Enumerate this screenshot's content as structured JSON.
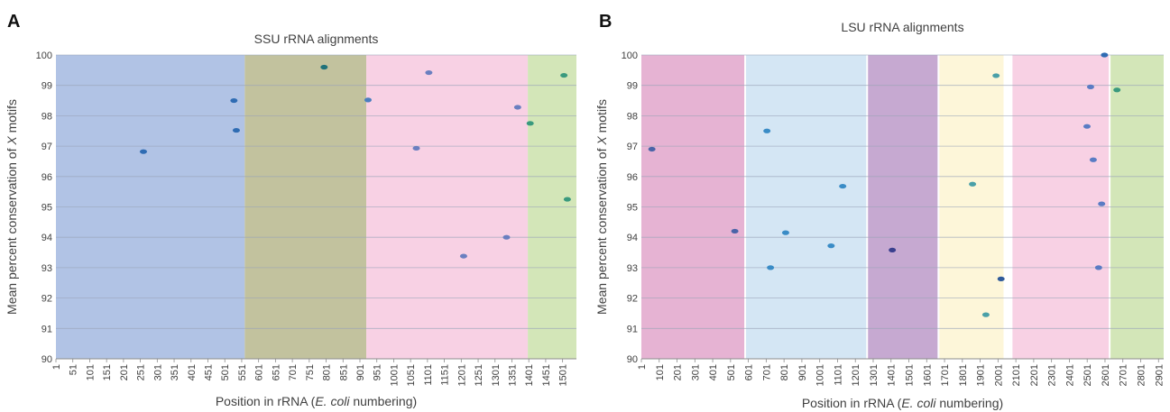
{
  "chart_data": [
    {
      "panel": "A",
      "type": "scatter",
      "title": "SSU rRNA alignments",
      "xlabel": "Position in rRNA (E. coli numbering)",
      "xlabel_parts": [
        "Position in rRNA (",
        "E. coli",
        " numbering)"
      ],
      "ylabel": "Mean percent conservation of X motifs",
      "ylabel_parts": [
        "Mean percent conservation of ",
        "X",
        " motifs"
      ],
      "xlim": [
        1,
        1542
      ],
      "ylim": [
        90,
        100
      ],
      "x_ticks": [
        "1",
        "51",
        "101",
        "151",
        "201",
        "251",
        "301",
        "351",
        "401",
        "451",
        "501",
        "551",
        "601",
        "651",
        "701",
        "751",
        "801",
        "851",
        "901",
        "951",
        "1001",
        "1051",
        "1101",
        "1151",
        "1201",
        "1251",
        "1301",
        "1351",
        "1401",
        "1451",
        "1501"
      ],
      "y_ticks": [
        "90",
        "91",
        "92",
        "93",
        "94",
        "95",
        "96",
        "97",
        "98",
        "99",
        "100"
      ],
      "grid": true,
      "regions": [
        {
          "start": 1,
          "end": 560,
          "color": "#b1c3e5"
        },
        {
          "start": 560,
          "end": 920,
          "color": "#c2c29e"
        },
        {
          "start": 920,
          "end": 1398,
          "color": "#f8d1e4"
        },
        {
          "start": 1398,
          "end": 1542,
          "color": "#d3e6b8"
        }
      ],
      "points": [
        {
          "x": 260,
          "y": 96.82,
          "color": "#2f6cb3"
        },
        {
          "x": 528,
          "y": 98.5,
          "color": "#2f6cb3"
        },
        {
          "x": 535,
          "y": 97.52,
          "color": "#2f6cb3"
        },
        {
          "x": 795,
          "y": 99.6,
          "color": "#20727a"
        },
        {
          "x": 925,
          "y": 98.52,
          "color": "#4a7fbf"
        },
        {
          "x": 1068,
          "y": 96.93,
          "color": "#6a7fc0"
        },
        {
          "x": 1105,
          "y": 99.42,
          "color": "#6a7fc0"
        },
        {
          "x": 1208,
          "y": 93.38,
          "color": "#6a7fc0"
        },
        {
          "x": 1335,
          "y": 94.0,
          "color": "#6a7fc0"
        },
        {
          "x": 1368,
          "y": 98.28,
          "color": "#6a7fc0"
        },
        {
          "x": 1405,
          "y": 97.75,
          "color": "#3a9a7e"
        },
        {
          "x": 1505,
          "y": 99.33,
          "color": "#3a9a7e"
        },
        {
          "x": 1515,
          "y": 95.25,
          "color": "#3a9a7e"
        }
      ]
    },
    {
      "panel": "B",
      "type": "scatter",
      "title": "LSU rRNA alignments",
      "xlabel": "Position in rRNA (E. coli numbering)",
      "xlabel_parts": [
        "Position in rRNA (",
        "E. coli",
        " numbering)"
      ],
      "ylabel": "Mean percent conservation of X motifs",
      "ylabel_parts": [
        "Mean percent conservation of ",
        "X",
        " motifs"
      ],
      "xlim": [
        1,
        2930
      ],
      "ylim": [
        90,
        100
      ],
      "x_ticks": [
        "1",
        "101",
        "201",
        "301",
        "401",
        "501",
        "601",
        "701",
        "801",
        "901",
        "1001",
        "1101",
        "1201",
        "1301",
        "1401",
        "1501",
        "1601",
        "1701",
        "1801",
        "1901",
        "2001",
        "2101",
        "2201",
        "2301",
        "2401",
        "2501",
        "2601",
        "2701",
        "2801",
        "2901"
      ],
      "y_ticks": [
        "90",
        "91",
        "92",
        "93",
        "94",
        "95",
        "96",
        "97",
        "98",
        "99",
        "100"
      ],
      "grid": true,
      "regions": [
        {
          "start": 1,
          "end": 578,
          "color": "#e6b3d3"
        },
        {
          "start": 588,
          "end": 1262,
          "color": "#d4e6f4"
        },
        {
          "start": 1272,
          "end": 1662,
          "color": "#c6a9d1"
        },
        {
          "start": 1672,
          "end": 2032,
          "color": "#fdf6d9"
        },
        {
          "start": 2082,
          "end": 2622,
          "color": "#f8d1e4"
        },
        {
          "start": 2632,
          "end": 2930,
          "color": "#d3e6b8"
        }
      ],
      "points": [
        {
          "x": 60,
          "y": 96.9,
          "color": "#4a64a8"
        },
        {
          "x": 525,
          "y": 94.2,
          "color": "#4a64a8"
        },
        {
          "x": 705,
          "y": 97.5,
          "color": "#3a8cc6"
        },
        {
          "x": 725,
          "y": 93.0,
          "color": "#3a8cc6"
        },
        {
          "x": 810,
          "y": 94.15,
          "color": "#3a8cc6"
        },
        {
          "x": 1065,
          "y": 93.72,
          "color": "#3a8cc6"
        },
        {
          "x": 1130,
          "y": 95.68,
          "color": "#3a8cc6"
        },
        {
          "x": 1408,
          "y": 93.58,
          "color": "#3a3f8e"
        },
        {
          "x": 1858,
          "y": 95.75,
          "color": "#4aa0a8"
        },
        {
          "x": 1933,
          "y": 91.45,
          "color": "#4aa0a8"
        },
        {
          "x": 1990,
          "y": 99.32,
          "color": "#4aa0a8"
        },
        {
          "x": 2018,
          "y": 92.63,
          "color": "#2f5a9a"
        },
        {
          "x": 2500,
          "y": 97.65,
          "color": "#5a7cc4"
        },
        {
          "x": 2520,
          "y": 98.95,
          "color": "#5a7cc4"
        },
        {
          "x": 2535,
          "y": 96.55,
          "color": "#5a7cc4"
        },
        {
          "x": 2565,
          "y": 93.0,
          "color": "#5a7cc4"
        },
        {
          "x": 2582,
          "y": 95.1,
          "color": "#5a7cc4"
        },
        {
          "x": 2598,
          "y": 100.0,
          "color": "#2f6cb3"
        },
        {
          "x": 2668,
          "y": 98.85,
          "color": "#3a9a7e"
        }
      ]
    }
  ]
}
